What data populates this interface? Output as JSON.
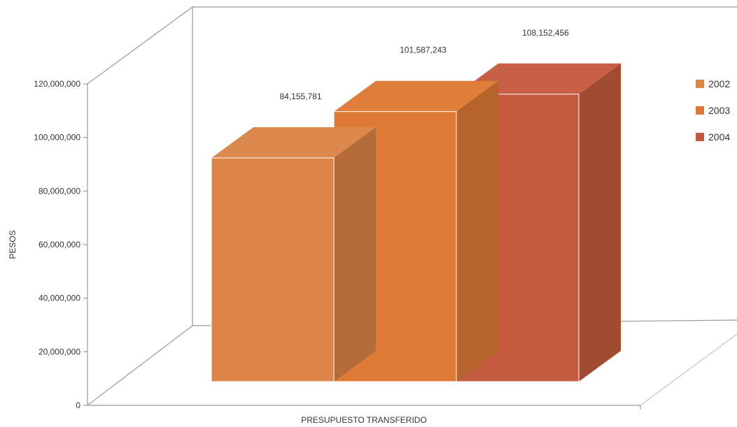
{
  "chart_data": {
    "type": "bar",
    "categories": [
      "PRESUPUESTO TRANSFERIDO"
    ],
    "series": [
      {
        "name": "2002",
        "values": [
          84155781
        ],
        "label": "84,155,781",
        "color": "#dc8446"
      },
      {
        "name": "2003",
        "values": [
          101587243
        ],
        "label": "101,587,243",
        "color": "#de7a35"
      },
      {
        "name": "2004",
        "values": [
          108152456
        ],
        "label": "108,152,456",
        "color": "#c55b3e"
      }
    ],
    "title": "",
    "xlabel": "PRESUPUESTO TRANSFERIDO",
    "ylabel": "PESOS",
    "ylim": [
      0,
      120000000
    ],
    "yticks": [
      "0",
      "20,000,000",
      "40,000,000",
      "60,000,000",
      "80,000,000",
      "100,000,000",
      "120,000,000"
    ],
    "grid": false,
    "legend": "right",
    "three_d": true
  }
}
